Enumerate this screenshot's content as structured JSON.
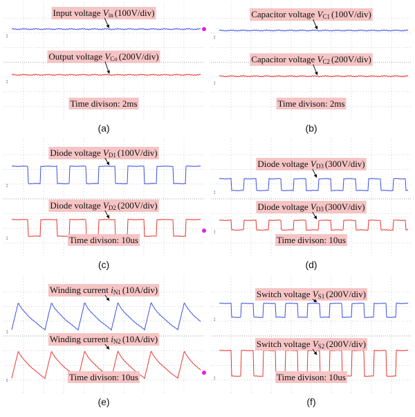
{
  "panels": [
    {
      "caption": "(a)",
      "labels": [
        {
          "text": "Input voltage ",
          "symbol": "V",
          "subscript": "in",
          "scale": "(100V/div)"
        },
        {
          "text": "Output voltage ",
          "symbol": "V",
          "subscript": "Co",
          "scale": "(200V/div)"
        }
      ],
      "time": "Time divison: 2ms"
    },
    {
      "caption": "(b)",
      "labels": [
        {
          "text": "Capacitor voltage ",
          "symbol": "V",
          "subscript": "C1",
          "scale": "(100V/div)"
        },
        {
          "text": "Capacitor voltage ",
          "symbol": "V",
          "subscript": "C2",
          "scale": "(200V/div)"
        }
      ],
      "time": "Time divison: 2ms"
    },
    {
      "caption": "(c)",
      "labels": [
        {
          "text": "Diode voltage ",
          "symbol": "V",
          "subscript": "D1",
          "scale": "(100V/div)"
        },
        {
          "text": "Diode voltage ",
          "symbol": "V",
          "subscript": "D2",
          "scale": "(200V/div)"
        }
      ],
      "time": "Time divison: 10us"
    },
    {
      "caption": "(d)",
      "labels": [
        {
          "text": "Diode voltage ",
          "symbol": "V",
          "subscript": "D3",
          "scale": "(300V/div)"
        },
        {
          "text": "Diode voltage ",
          "symbol": "V",
          "subscript": "D3",
          "scale": "(300V/div)"
        }
      ],
      "time": "Time divison: 10us"
    },
    {
      "caption": "(e)",
      "labels": [
        {
          "text": "Winding current ",
          "symbol": "i",
          "subscript": "N1",
          "scale": "(10A/div)"
        },
        {
          "text": "Winding current ",
          "symbol": "i",
          "subscript": "N2",
          "scale": "(10A/div)"
        }
      ],
      "time": "Time divison: 10us"
    },
    {
      "caption": "(f)",
      "labels": [
        {
          "text": "Switch voltage ",
          "symbol": "V",
          "subscript": "S1",
          "scale": "(200V/div)"
        },
        {
          "text": "Switch voltage ",
          "symbol": "V",
          "subscript": "S2",
          "scale": "(200V/div)"
        }
      ],
      "time": "Time divison: 10us"
    }
  ]
}
